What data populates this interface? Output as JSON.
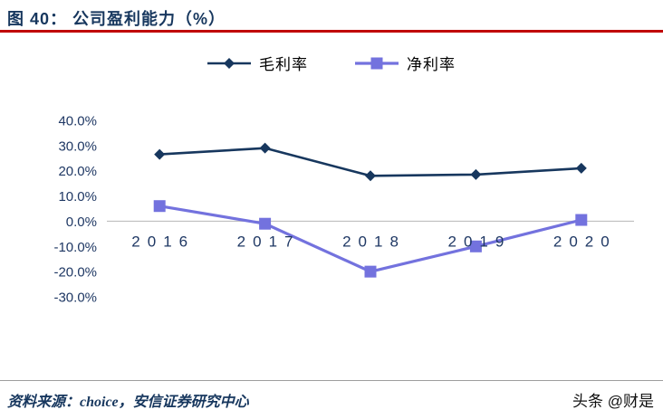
{
  "header": {
    "title": "图 40：  公司盈利能力（%）"
  },
  "chart_data": {
    "type": "line",
    "title": "公司盈利能力（%）",
    "categories": [
      "2016",
      "2017",
      "2018",
      "2019",
      "2020"
    ],
    "series": [
      {
        "name": "毛利率",
        "color": "#17375E",
        "marker": "diamond",
        "values": [
          26.5,
          29.0,
          18.0,
          18.5,
          21.0
        ]
      },
      {
        "name": "净利率",
        "color": "#7372DE",
        "marker": "square",
        "values": [
          6.0,
          -1.0,
          -20.0,
          -10.0,
          0.5
        ]
      }
    ],
    "ylim": [
      -30,
      40
    ],
    "ytick_step": 10,
    "ytick_labels": [
      "40.0%",
      "30.0%",
      "20.0%",
      "10.0%",
      "0.0%",
      "-10.0%",
      "-20.0%",
      "-30.0%"
    ],
    "legend_position": "top",
    "grid": false,
    "axis_line_color": "#BFBFBF",
    "tick_text_color": "#1F3864"
  },
  "footer": {
    "source": "资料来源：choice，安信证券研究中心",
    "watermark": "头条 @财是"
  },
  "colors": {
    "title": "#17375E",
    "underline": "#C00000"
  }
}
